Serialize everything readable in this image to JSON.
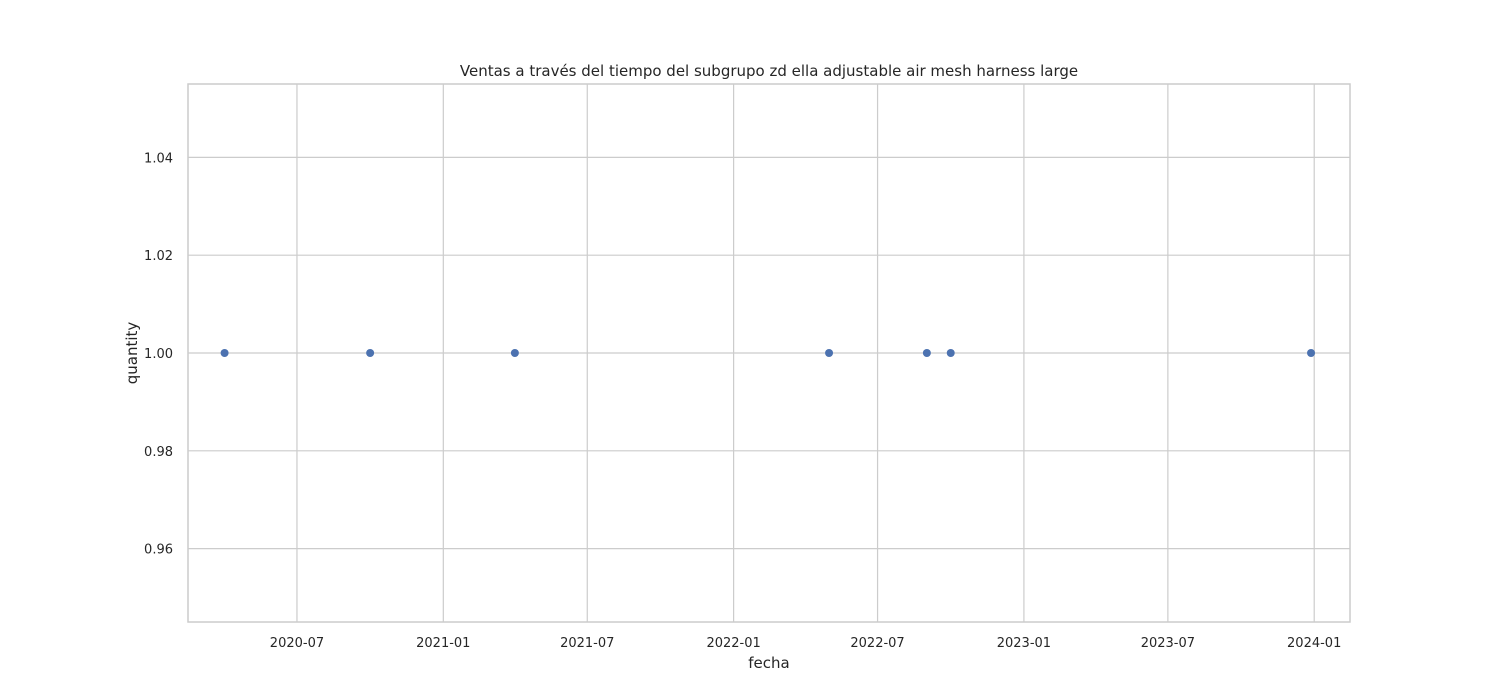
{
  "chart_data": {
    "type": "scatter",
    "title": "Ventas a través del tiempo del subgrupo zd ella adjustable air mesh harness large",
    "xlabel": "fecha",
    "ylabel": "quantity",
    "x_scale": "date",
    "xlim": [
      "2020-02-15",
      "2024-02-15"
    ],
    "ylim": [
      0.945,
      1.055
    ],
    "x_ticks": [
      "2020-07-01",
      "2021-01-01",
      "2021-07-01",
      "2022-01-01",
      "2022-07-01",
      "2023-01-01",
      "2023-07-01",
      "2024-01-01"
    ],
    "x_tick_labels": [
      "2020-07",
      "2021-01",
      "2021-07",
      "2022-01",
      "2022-07",
      "2023-01",
      "2023-07",
      "2024-01"
    ],
    "y_ticks": [
      0.96,
      0.98,
      1.0,
      1.02,
      1.04
    ],
    "y_tick_labels": [
      "0.96",
      "0.98",
      "1.00",
      "1.02",
      "1.04"
    ],
    "grid": true,
    "color": "#4c72b0",
    "points": [
      {
        "x": "2020-04-01",
        "y": 1.0
      },
      {
        "x": "2020-10-01",
        "y": 1.0
      },
      {
        "x": "2021-04-01",
        "y": 1.0
      },
      {
        "x": "2022-05-01",
        "y": 1.0
      },
      {
        "x": "2022-09-01",
        "y": 1.0
      },
      {
        "x": "2022-10-01",
        "y": 1.0
      },
      {
        "x": "2023-12-28",
        "y": 1.0
      }
    ]
  }
}
